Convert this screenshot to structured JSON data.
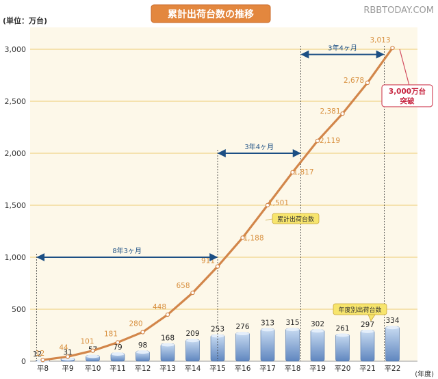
{
  "watermark": "RBBTODAY.COM",
  "colors": {
    "line": "#d2864a",
    "line_label": "#d8903f",
    "bar_top": "#c9dcf2",
    "bar_bottom": "#5f86bf",
    "arrow": "#1c4f84",
    "title_bg": "#e3873e",
    "callout_border": "#d24b5f",
    "callout_text": "#c7243f",
    "legend_bg": "#f7e56d",
    "plot_bg": "#fdf8e9",
    "grid": "#edcb73"
  },
  "chart_data": {
    "type": "bar+line",
    "title": "累計出荷台数の推移",
    "unit_label": "(単位：万台)",
    "xlabel": "(年度)",
    "categories": [
      "平8",
      "平9",
      "平10",
      "平11",
      "平12",
      "平13",
      "平14",
      "平15",
      "平16",
      "平17",
      "平18",
      "平19",
      "平20",
      "平21",
      "平22"
    ],
    "ylim": [
      0,
      3200
    ],
    "yticks": [
      0,
      500,
      1000,
      1500,
      2000,
      2500,
      3000
    ],
    "ytick_labels": [
      "0",
      "500",
      "1,000",
      "1,500",
      "2,000",
      "2,500",
      "3,000"
    ],
    "series": [
      {
        "name": "年度別出荷台数",
        "type": "bar",
        "values": [
          12,
          31,
          57,
          79,
          98,
          168,
          209,
          253,
          276,
          313,
          315,
          302,
          261,
          297,
          334
        ],
        "labels": [
          "12",
          "31",
          "57",
          "79",
          "98",
          "168",
          "209",
          "253",
          "276",
          "313",
          "315",
          "302",
          "261",
          "297",
          "334"
        ]
      },
      {
        "name": "累計出荷台数",
        "type": "line",
        "x": [
          8,
          9,
          10,
          11,
          12,
          13,
          14,
          15,
          16,
          17,
          18,
          19,
          20,
          21,
          22
        ],
        "values": [
          12,
          44,
          101,
          181,
          280,
          448,
          658,
          911,
          1188,
          1501,
          1817,
          2119,
          2381,
          2678,
          3013
        ],
        "labels": [
          "12",
          "44",
          "101",
          "181",
          "280",
          "448",
          "658",
          "911",
          "1,188",
          "1,501",
          "1,817",
          "2,119",
          "2,381",
          "2,678",
          "3,013"
        ]
      }
    ],
    "spans": [
      {
        "label": "8年3ヶ月",
        "from_x": 7.75,
        "to_x": 15.0,
        "y": 1000
      },
      {
        "label": "3年4ヶ月",
        "from_x": 15.0,
        "to_x": 18.33,
        "y": 2000
      },
      {
        "label": "3年4ヶ月",
        "from_x": 18.33,
        "to_x": 21.67,
        "y": 2950
      }
    ],
    "dashed_markers": [
      {
        "x": 7.75,
        "y": 1000
      },
      {
        "x": 15.0,
        "y": 2000
      },
      {
        "x": 18.33,
        "y": 3000
      },
      {
        "x": 21.67,
        "y": 3000
      }
    ],
    "annotations": [
      {
        "text_lines": [
          "3,000万台",
          "突破"
        ],
        "x": 21.67,
        "y": 3000
      }
    ],
    "legend": [
      {
        "text": "累計出荷台数",
        "series": "line"
      },
      {
        "text": "年度別出荷台数",
        "series": "bar"
      }
    ]
  }
}
